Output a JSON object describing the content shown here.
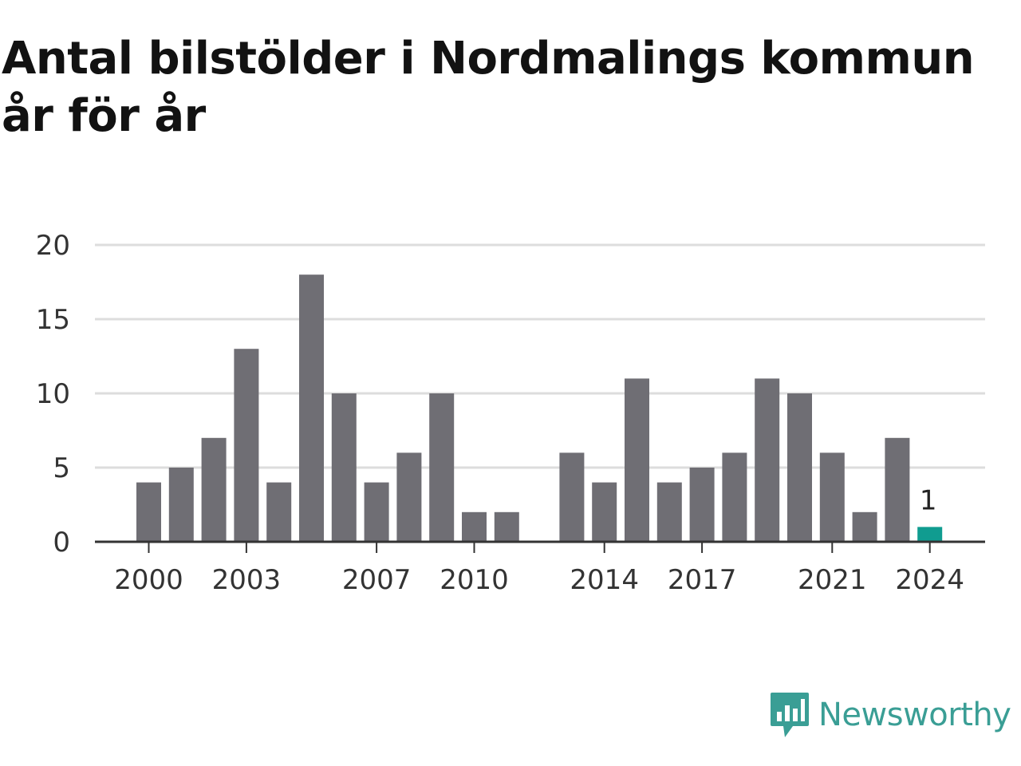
{
  "chart_data": {
    "type": "bar",
    "title": "Antal bilstölder i Nordmalings kommun år för år",
    "categories": [
      2000,
      2001,
      2002,
      2003,
      2004,
      2005,
      2006,
      2007,
      2008,
      2009,
      2010,
      2011,
      2012,
      2013,
      2014,
      2015,
      2016,
      2017,
      2018,
      2019,
      2020,
      2021,
      2022,
      2023,
      2024
    ],
    "values": [
      4,
      5,
      7,
      13,
      4,
      18,
      10,
      4,
      6,
      10,
      2,
      2,
      0,
      6,
      4,
      11,
      4,
      5,
      6,
      11,
      10,
      6,
      2,
      7,
      1
    ],
    "x_tick_labels": [
      "2000",
      "2003",
      "2007",
      "2010",
      "2014",
      "2017",
      "2021",
      "2024"
    ],
    "y_ticks": [
      0,
      5,
      10,
      15,
      20
    ],
    "ylim": [
      0,
      20
    ],
    "grid": true,
    "highlight": {
      "category": 2024,
      "label": "1",
      "color": "#109c90"
    },
    "bar_color": "#6f6e74",
    "grid_color": "#dddddd",
    "axis_color": "#333333"
  },
  "brand": {
    "name": "Newsworthy",
    "icon": "newsworthy-logo-icon",
    "color": "#3a9e95"
  }
}
